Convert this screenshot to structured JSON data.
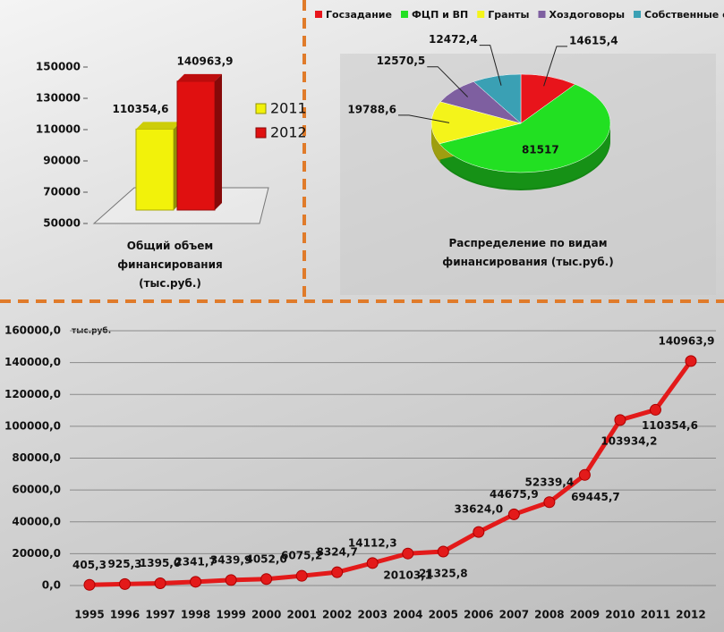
{
  "chart_data": [
    {
      "type": "bar3d",
      "title": "Общий объем финансирования (тыс.руб.)",
      "series": [
        {
          "name": "2011",
          "color": "#f2f20a",
          "values": [
            110354.6
          ],
          "value_labels": [
            "110354,6"
          ]
        },
        {
          "name": "2012",
          "color": "#e01010",
          "values": [
            140963.9
          ],
          "value_labels": [
            "140963,9"
          ]
        }
      ],
      "ylim": [
        50000,
        150000
      ],
      "yticks": [
        50000,
        70000,
        90000,
        110000,
        130000,
        150000
      ],
      "legend": "right"
    },
    {
      "type": "pie",
      "title": "Распределение по видам финансирования (тыс.руб.)",
      "categories": [
        "Госзадание",
        "ФЦП и ВП",
        "Гранты",
        "Хоздоговоры",
        "Собственные средства"
      ],
      "values": [
        14615.4,
        81517,
        19788.6,
        12570.5,
        12472.4
      ],
      "value_labels": [
        "14615,4",
        "81517",
        "19788,6",
        "12570,5",
        "12472,4"
      ],
      "colors": [
        "#e8141b",
        "#22e022",
        "#f4f41a",
        "#7e5fa0",
        "#3aa0b4"
      ],
      "legend": "top"
    },
    {
      "type": "line",
      "y_label": "тыс.руб.",
      "categories": [
        "1995",
        "1996",
        "1997",
        "1998",
        "1999",
        "2000",
        "2001",
        "2002",
        "2003",
        "2004",
        "2005",
        "2006",
        "2007",
        "2008",
        "2009",
        "2010",
        "2011",
        "2012"
      ],
      "series": [
        {
          "name": null,
          "color": "#e31a1a",
          "values": [
            405.3,
            925.3,
            1395.0,
            2341.7,
            3439.9,
            4052.0,
            6075.2,
            8324.7,
            14112.3,
            20103.1,
            21325.8,
            33624.0,
            44675.9,
            52339.4,
            69445.7,
            103934.2,
            110354.6,
            140963.9
          ],
          "value_labels": [
            "405,3",
            "925,3",
            "1395,0",
            "2341,7",
            "3439,9",
            "4052,0",
            "6075,2",
            "8324,7",
            "14112,3",
            "20103,1",
            "21325,8",
            "33624,0",
            "44675,9",
            "52339,4",
            "69445,7",
            "103934,2",
            "110354,6",
            "140963,9"
          ]
        }
      ],
      "ylim": [
        0,
        160000
      ],
      "yticks": [
        {
          "value": 0,
          "label": "0,0"
        },
        {
          "value": 20000,
          "label": "20000,0"
        },
        {
          "value": 40000,
          "label": "40000,0"
        },
        {
          "value": 60000,
          "label": "60000,0"
        },
        {
          "value": 80000,
          "label": "80000,0"
        },
        {
          "value": 100000,
          "label": "100000,0"
        },
        {
          "value": 120000,
          "label": "120000,0"
        },
        {
          "value": 140000,
          "label": "140000,0"
        },
        {
          "value": 160000,
          "label": "160000,0"
        }
      ],
      "grid": true
    }
  ]
}
